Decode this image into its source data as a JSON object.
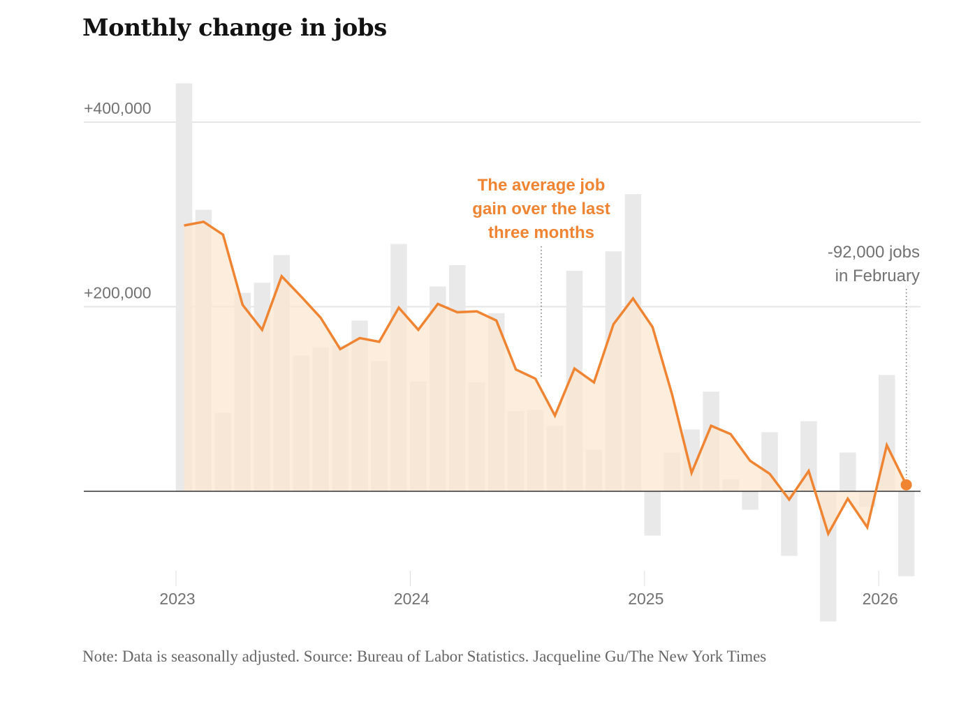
{
  "title": "Monthly change in jobs",
  "note": "Note: Data is seasonally adjusted.  Source: Bureau of Labor Statistics.  Jacqueline Gu/The New York Times",
  "colors": {
    "bar": "#e9e9e9",
    "line": "#ef8533",
    "area": "#fbe6cf",
    "grid": "#e6e6e6",
    "zero": "#333333",
    "text_grey": "#727272"
  },
  "chart_data": {
    "type": "bar",
    "title": "Monthly change in jobs",
    "xlabel": "",
    "ylabel": "",
    "ylim": [
      -150000,
      450000
    ],
    "grid": true,
    "yticks": [
      {
        "value": 400000,
        "label": "+400,000"
      },
      {
        "value": 200000,
        "label": "+200,000"
      }
    ],
    "xticks": [
      {
        "index": 0,
        "label": "2023"
      },
      {
        "index": 12,
        "label": "2024"
      },
      {
        "index": 24,
        "label": "2025"
      },
      {
        "index": 36,
        "label": "2026"
      }
    ],
    "categories": [
      "Jan 2023",
      "Feb 2023",
      "Mar 2023",
      "Apr 2023",
      "May 2023",
      "Jun 2023",
      "Jul 2023",
      "Aug 2023",
      "Sep 2023",
      "Oct 2023",
      "Nov 2023",
      "Dec 2023",
      "Jan 2024",
      "Feb 2024",
      "Mar 2024",
      "Apr 2024",
      "May 2024",
      "Jun 2024",
      "Jul 2024",
      "Aug 2024",
      "Sep 2024",
      "Oct 2024",
      "Nov 2024",
      "Dec 2024",
      "Jan 2025",
      "Feb 2025",
      "Mar 2025",
      "Apr 2025",
      "May 2025",
      "Jun 2025",
      "Jul 2025",
      "Aug 2025",
      "Sep 2025",
      "Oct 2025",
      "Nov 2025",
      "Dec 2025",
      "Jan 2026",
      "Feb 2026"
    ],
    "series": [
      {
        "name": "Monthly change",
        "type": "bar",
        "values": [
          442000,
          305000,
          85000,
          215000,
          226000,
          256000,
          147000,
          156000,
          158000,
          185000,
          141000,
          268000,
          119000,
          222000,
          245000,
          118000,
          193000,
          87000,
          88000,
          71000,
          239000,
          45000,
          260000,
          322000,
          -48000,
          42000,
          67000,
          108000,
          13000,
          -20000,
          64000,
          -70000,
          76000,
          -141000,
          42000,
          -17000,
          126000,
          -92000
        ]
      },
      {
        "name": "Three-month average",
        "type": "line",
        "values": [
          288000,
          292000,
          278000,
          202000,
          175000,
          233000,
          211000,
          188000,
          154000,
          166000,
          162000,
          199000,
          175000,
          203000,
          194000,
          195000,
          185000,
          132000,
          122000,
          82000,
          133000,
          118000,
          181000,
          209000,
          178000,
          105000,
          20000,
          71000,
          62000,
          33000,
          19000,
          -9000,
          22000,
          -46000,
          -8000,
          -39000,
          50000,
          7000
        ]
      }
    ],
    "annotations": [
      {
        "target_index": 19,
        "lines": [
          "The average job",
          "gain over the last",
          "three months"
        ],
        "color": "orange"
      },
      {
        "target_index": 37,
        "lines": [
          "-92,000 jobs",
          "in February"
        ],
        "color": "grey"
      }
    ]
  }
}
